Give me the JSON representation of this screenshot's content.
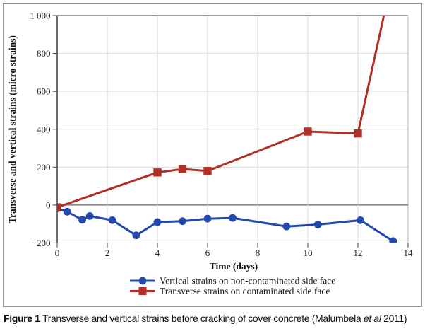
{
  "caption": {
    "label": "Figure 1",
    "body": " Transverse and vertical strains before cracking of cover concrete (Malumbela ",
    "etal": "et al",
    "tail": " 2011)"
  },
  "colors": {
    "series_blue": "#2449AC",
    "series_red": "#AE3026",
    "gridline": "#D9D9D9",
    "zero_line": "#7D7D7D",
    "top_spine": "#5C5C5C",
    "bottom_spine": "#8F8F8F",
    "left_spine": "#3E3E3E",
    "right_spine": "#B5B5B5",
    "tick_mark": "#444444",
    "figure_border": "#979797"
  },
  "chart_data": {
    "type": "line",
    "title": "",
    "xlabel": "Time (days)",
    "ylabel": "Transverse and vertical strains (micro strains)",
    "xlim": [
      0,
      14
    ],
    "ylim": [
      -200,
      1000
    ],
    "xticks": [
      0,
      2,
      4,
      6,
      8,
      10,
      12,
      14
    ],
    "yticks": [
      -200,
      0,
      200,
      400,
      600,
      800,
      1000
    ],
    "ytick_labels": [
      "−200",
      "0",
      "200",
      "400",
      "600",
      "800",
      "1 000"
    ],
    "grid": true,
    "legend_position": "bottom-center",
    "series": [
      {
        "name": "Vertical strains on non-contaminated side face",
        "color": "#2449AC",
        "marker": "circle",
        "points": [
          [
            0,
            -18
          ],
          [
            0.4,
            -35
          ],
          [
            1,
            -78
          ],
          [
            1.3,
            -58
          ],
          [
            2.2,
            -80
          ],
          [
            3.15,
            -160
          ],
          [
            4,
            -90
          ],
          [
            5,
            -85
          ],
          [
            6,
            -72
          ],
          [
            7,
            -68
          ],
          [
            9.15,
            -113
          ],
          [
            10.4,
            -103
          ],
          [
            12.1,
            -80
          ],
          [
            13.4,
            -190
          ]
        ]
      },
      {
        "name": "Transverse strains on contaminated side face",
        "color": "#AE3026",
        "marker": "square",
        "points": [
          [
            0,
            -12
          ],
          [
            4,
            172
          ],
          [
            5,
            190
          ],
          [
            6,
            180
          ],
          [
            10,
            388
          ],
          [
            12,
            378
          ],
          [
            13.5,
            1280
          ]
        ],
        "note": "final segment rises off-scale and is clipped at the top of the plot (~day 13)"
      }
    ]
  }
}
